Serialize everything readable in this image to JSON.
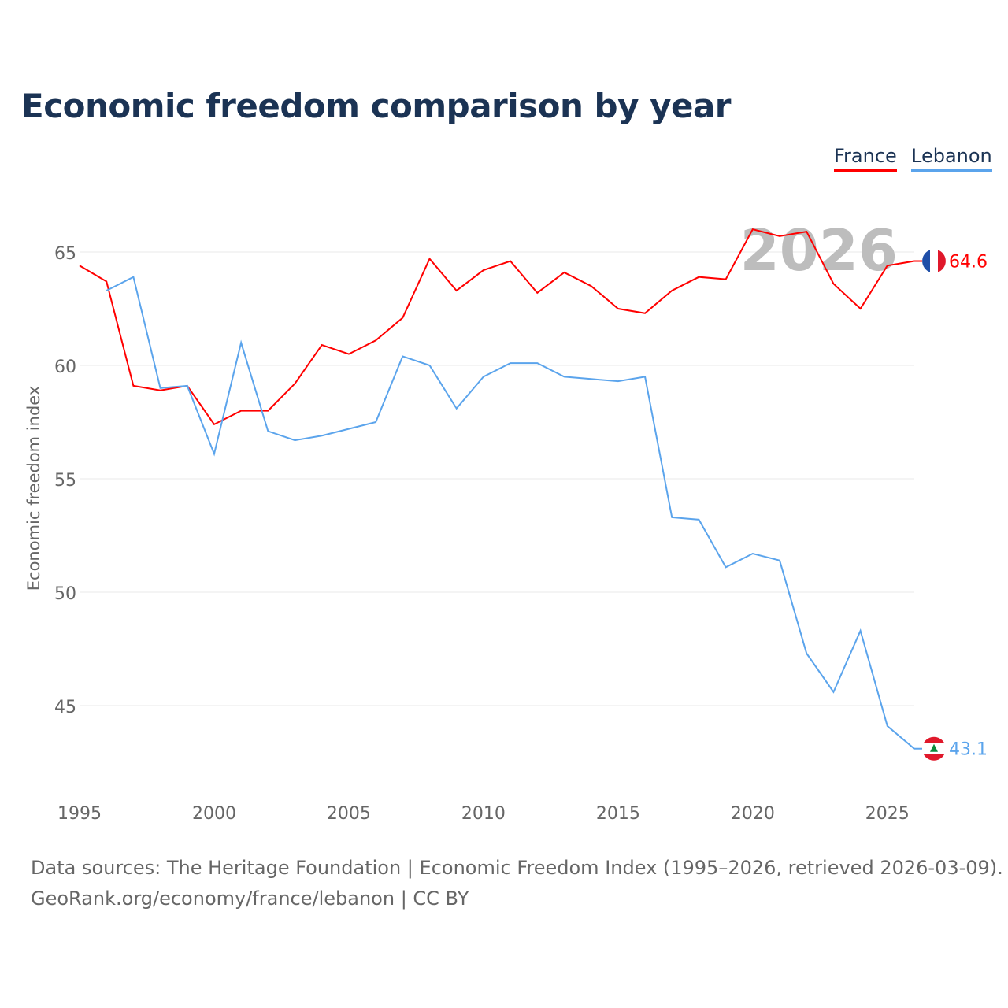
{
  "chart_data": {
    "type": "line",
    "title": "Economic freedom comparison by year",
    "xlabel": "",
    "ylabel": "Economic freedom index",
    "xlim": [
      1995,
      2026
    ],
    "ylim": [
      42,
      67
    ],
    "yticks": [
      45,
      50,
      55,
      60,
      65
    ],
    "xticks": [
      1995,
      2000,
      2005,
      2010,
      2015,
      2020,
      2025
    ],
    "grid": true,
    "legend_position": "top-right",
    "watermark_year": "2026",
    "series": [
      {
        "name": "France",
        "color": "#ff0000",
        "end_label": "64.6",
        "x": [
          1995,
          1996,
          1997,
          1998,
          1999,
          2000,
          2001,
          2002,
          2003,
          2004,
          2005,
          2006,
          2007,
          2008,
          2009,
          2010,
          2011,
          2012,
          2013,
          2014,
          2015,
          2016,
          2017,
          2018,
          2019,
          2020,
          2021,
          2022,
          2023,
          2024,
          2025,
          2026
        ],
        "values": [
          64.4,
          63.7,
          59.1,
          58.9,
          59.1,
          57.4,
          58.0,
          58.0,
          59.2,
          60.9,
          60.5,
          61.1,
          62.1,
          64.7,
          63.3,
          64.2,
          64.6,
          63.2,
          64.1,
          63.5,
          62.5,
          62.3,
          63.3,
          63.9,
          63.8,
          66.0,
          65.7,
          65.9,
          63.6,
          62.5,
          64.4,
          64.6
        ]
      },
      {
        "name": "Lebanon",
        "color": "#5ba4ec",
        "end_label": "43.1",
        "x": [
          1996,
          1997,
          1998,
          1999,
          2000,
          2001,
          2002,
          2003,
          2004,
          2005,
          2006,
          2007,
          2008,
          2009,
          2010,
          2011,
          2012,
          2013,
          2014,
          2015,
          2016,
          2017,
          2018,
          2019,
          2020,
          2021,
          2022,
          2023,
          2024,
          2025,
          2026
        ],
        "values": [
          63.3,
          63.9,
          59.0,
          59.1,
          56.1,
          61.0,
          57.1,
          56.7,
          56.9,
          57.2,
          57.5,
          60.4,
          60.0,
          58.1,
          59.5,
          60.1,
          60.1,
          59.5,
          59.4,
          59.3,
          59.5,
          53.3,
          53.2,
          51.1,
          51.7,
          51.4,
          47.3,
          45.6,
          48.3,
          44.1,
          43.1
        ]
      }
    ]
  },
  "footer": {
    "line1": "Data sources: The Heritage Foundation | Economic Freedom Index (1995–2026, retrieved 2026-03-09).",
    "line2": "GeoRank.org/economy/france/lebanon | CC BY"
  }
}
